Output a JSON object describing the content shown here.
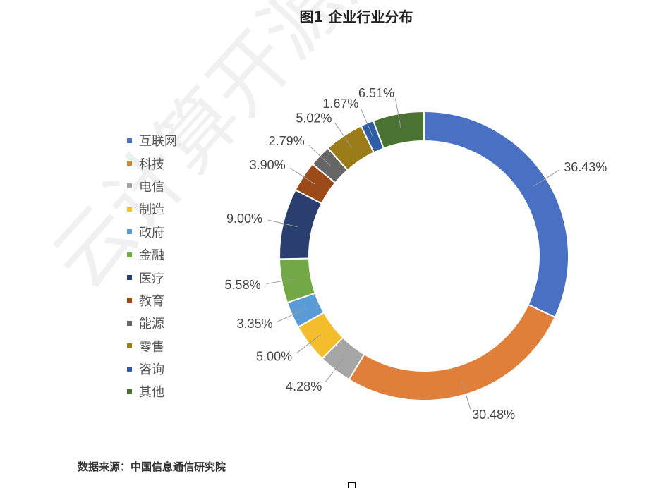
{
  "chart_data": {
    "type": "pie",
    "variant": "donut",
    "title": "图1  企业行业分布",
    "source": "数据来源：中国信息通信研究院",
    "legend_position": "left",
    "categories": [
      "互联网",
      "科技",
      "电信",
      "制造",
      "政府",
      "金融",
      "医疗",
      "教育",
      "能源",
      "零售",
      "咨询",
      "其他"
    ],
    "values": [
      36.43,
      30.48,
      4.28,
      5.0,
      3.35,
      5.58,
      9.0,
      3.9,
      2.79,
      5.02,
      1.67,
      6.51
    ],
    "labels": [
      "36.43%",
      "30.48%",
      "4.28%",
      "5.00%",
      "3.35%",
      "5.58%",
      "9.00%",
      "3.90%",
      "2.79%",
      "5.02%",
      "1.67%",
      "6.51%"
    ],
    "colors": [
      "#4a70c4",
      "#e07f3a",
      "#a5a5a5",
      "#f4bd2c",
      "#5b9bd5",
      "#72a845",
      "#2a3f6e",
      "#9c4a17",
      "#666666",
      "#9c7c18",
      "#2e5ea8",
      "#4a7232"
    ]
  },
  "watermark": "云计算开源产业"
}
